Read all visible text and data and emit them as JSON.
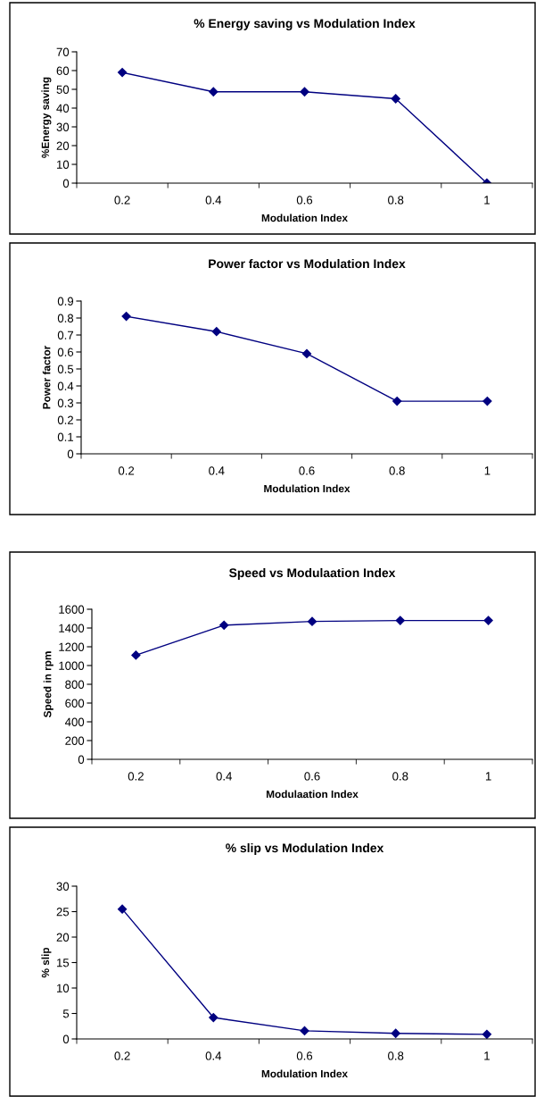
{
  "chart_data": [
    {
      "type": "line",
      "title": "% Energy saving vs Modulation Index",
      "xlabel": "Modulation Index",
      "ylabel": "%Energy saving",
      "categories": [
        "0.2",
        "0.4",
        "0.6",
        "0.8",
        "1"
      ],
      "series": [
        {
          "color": "#000080",
          "values": [
            59,
            48.7,
            48.7,
            45,
            0
          ]
        }
      ],
      "ylim": [
        0,
        70
      ],
      "yticks": [
        0,
        10,
        20,
        30,
        40,
        50,
        60,
        70
      ],
      "marker": "diamond",
      "line_style": "solid"
    },
    {
      "type": "line",
      "title": "Power factor vs Modulation Index",
      "xlabel": "Modulation Index",
      "ylabel": "Power factor",
      "categories": [
        "0.2",
        "0.4",
        "0.6",
        "0.8",
        "1"
      ],
      "series": [
        {
          "color": "#000080",
          "values": [
            0.81,
            0.72,
            0.59,
            0.31,
            0.31
          ]
        }
      ],
      "ylim": [
        0,
        0.9
      ],
      "yticks": [
        0,
        0.1,
        0.2,
        0.3,
        0.4,
        0.5,
        0.6,
        0.7,
        0.8,
        0.9
      ],
      "marker": "diamond",
      "line_style": "solid"
    },
    {
      "type": "line",
      "title": "Speed vs Modulaation Index",
      "xlabel": "Modulaation Index",
      "ylabel": "Speed in rpm",
      "categories": [
        "0.2",
        "0.4",
        "0.6",
        "0.8",
        "1"
      ],
      "series": [
        {
          "color": "#000080",
          "values": [
            1110,
            1430,
            1470,
            1480,
            1480
          ]
        }
      ],
      "ylim": [
        0,
        1600
      ],
      "yticks": [
        0,
        200,
        400,
        600,
        800,
        1000,
        1200,
        1400,
        1600
      ],
      "marker": "diamond",
      "line_style": "solid"
    },
    {
      "type": "line",
      "title": "% slip vs Modulation Index",
      "xlabel": "Modulation Index",
      "ylabel": "% slip",
      "categories": [
        "0.2",
        "0.4",
        "0.6",
        "0.8",
        "1"
      ],
      "series": [
        {
          "color": "#000080",
          "values": [
            25.5,
            4.2,
            1.6,
            1.1,
            0.9
          ]
        }
      ],
      "ylim": [
        0,
        30
      ],
      "yticks": [
        0,
        5,
        10,
        15,
        20,
        25,
        30
      ],
      "marker": "diamond",
      "line_style": "solid"
    }
  ]
}
